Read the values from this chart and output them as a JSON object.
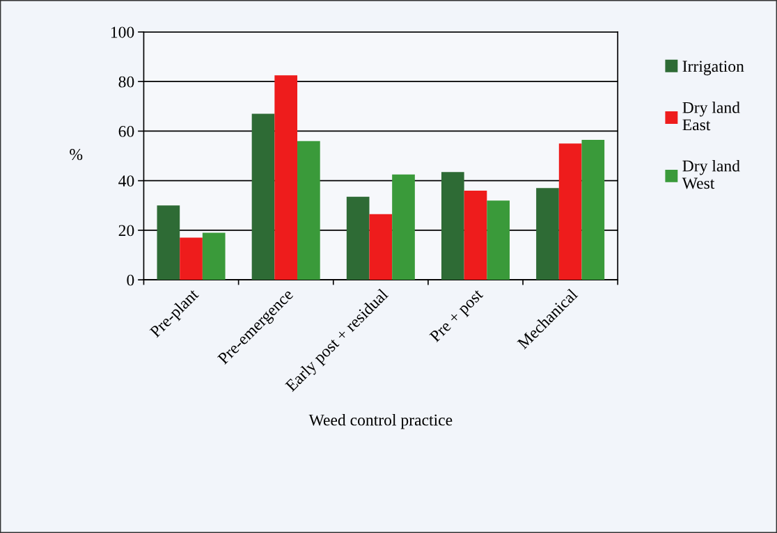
{
  "chart_data": {
    "type": "bar",
    "xlabel": "Weed control practice",
    "ylabel": "%",
    "categories": [
      "Pre-plant",
      "Pre-emergence",
      "Early post + residual",
      "Pre + post",
      "Mechanical"
    ],
    "series": [
      {
        "name": "Irrigation",
        "color": "#2e6b35",
        "values": [
          30,
          67,
          33.5,
          43.5,
          37
        ]
      },
      {
        "name": "Dry land\nEast",
        "color": "#ee1c1c",
        "values": [
          17,
          82.5,
          26.5,
          36,
          55
        ]
      },
      {
        "name": "Dry land\nWest",
        "color": "#3a9a3a",
        "values": [
          19,
          56,
          42.5,
          32,
          56.5
        ]
      }
    ],
    "ylim": [
      0,
      100
    ],
    "yticks": [
      0,
      20,
      40,
      60,
      80,
      100
    ],
    "grid": "y",
    "legend": "right"
  }
}
